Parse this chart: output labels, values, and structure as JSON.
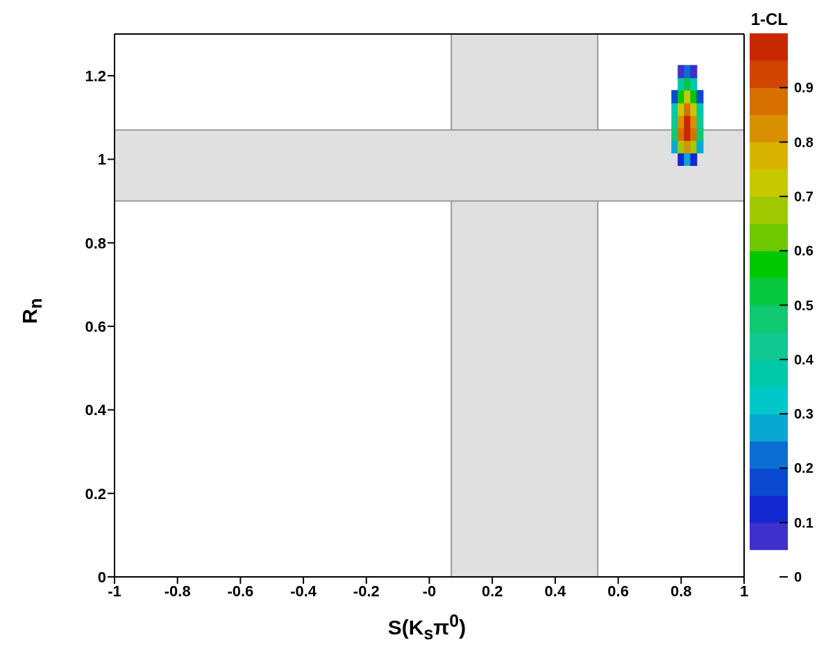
{
  "chart_data": {
    "type": "scatter",
    "xlabel": "S(K$_{s}$π$^{0}$)",
    "ylabel": "R$_{n}$",
    "clabel": "1-CL",
    "marker": "square",
    "x": [
      0.8,
      0.82,
      0.84,
      0.78,
      0.8,
      0.82,
      0.84,
      0.86,
      0.78,
      0.8,
      0.82,
      0.84,
      0.86,
      0.78,
      0.8,
      0.82,
      0.84,
      0.86,
      0.78,
      0.8,
      0.82,
      0.84,
      0.86,
      0.78,
      0.8,
      0.82,
      0.84,
      0.86,
      0.8,
      0.82,
      0.84,
      0.8,
      0.82,
      0.84
    ],
    "values": [
      1.0,
      1.0,
      1.0,
      1.03,
      1.03,
      1.03,
      1.03,
      1.03,
      1.06,
      1.06,
      1.06,
      1.06,
      1.06,
      1.09,
      1.09,
      1.09,
      1.09,
      1.09,
      1.12,
      1.12,
      1.12,
      1.12,
      1.12,
      1.15,
      1.15,
      1.15,
      1.15,
      1.15,
      1.18,
      1.18,
      1.18,
      1.21,
      1.21,
      1.21
    ],
    "cvalues": [
      0.13,
      0.27,
      0.13,
      0.29,
      0.68,
      0.82,
      0.68,
      0.29,
      0.47,
      0.87,
      0.98,
      0.87,
      0.47,
      0.44,
      0.84,
      0.97,
      0.84,
      0.44,
      0.35,
      0.74,
      0.88,
      0.74,
      0.35,
      0.19,
      0.59,
      0.72,
      0.59,
      0.19,
      0.37,
      0.5,
      0.37,
      0.09,
      0.22,
      0.09
    ],
    "xlim": [
      -1,
      1
    ],
    "xticks": [
      -1,
      -0.8,
      -0.6,
      -0.4,
      -0.2,
      {
        "value": 0,
        "label": "-0"
      },
      0.2,
      0.4,
      0.6,
      0.8,
      1
    ],
    "ylim": [
      0,
      1.3
    ],
    "yticks": [
      0,
      0.2,
      0.4,
      0.6,
      0.8,
      1,
      1.2
    ],
    "clim": [
      0,
      1
    ],
    "cticks": [
      0,
      0.1,
      0.2,
      0.3,
      0.4,
      0.5,
      0.6,
      0.7,
      0.8,
      0.9
    ],
    "bands": [
      {
        "axis": "x",
        "from": 0.07,
        "to": 0.535,
        "color": "#e0e0e0"
      },
      {
        "axis": "y",
        "from": 0.9,
        "to": 1.07,
        "color": "#e0e0e0"
      }
    ]
  }
}
